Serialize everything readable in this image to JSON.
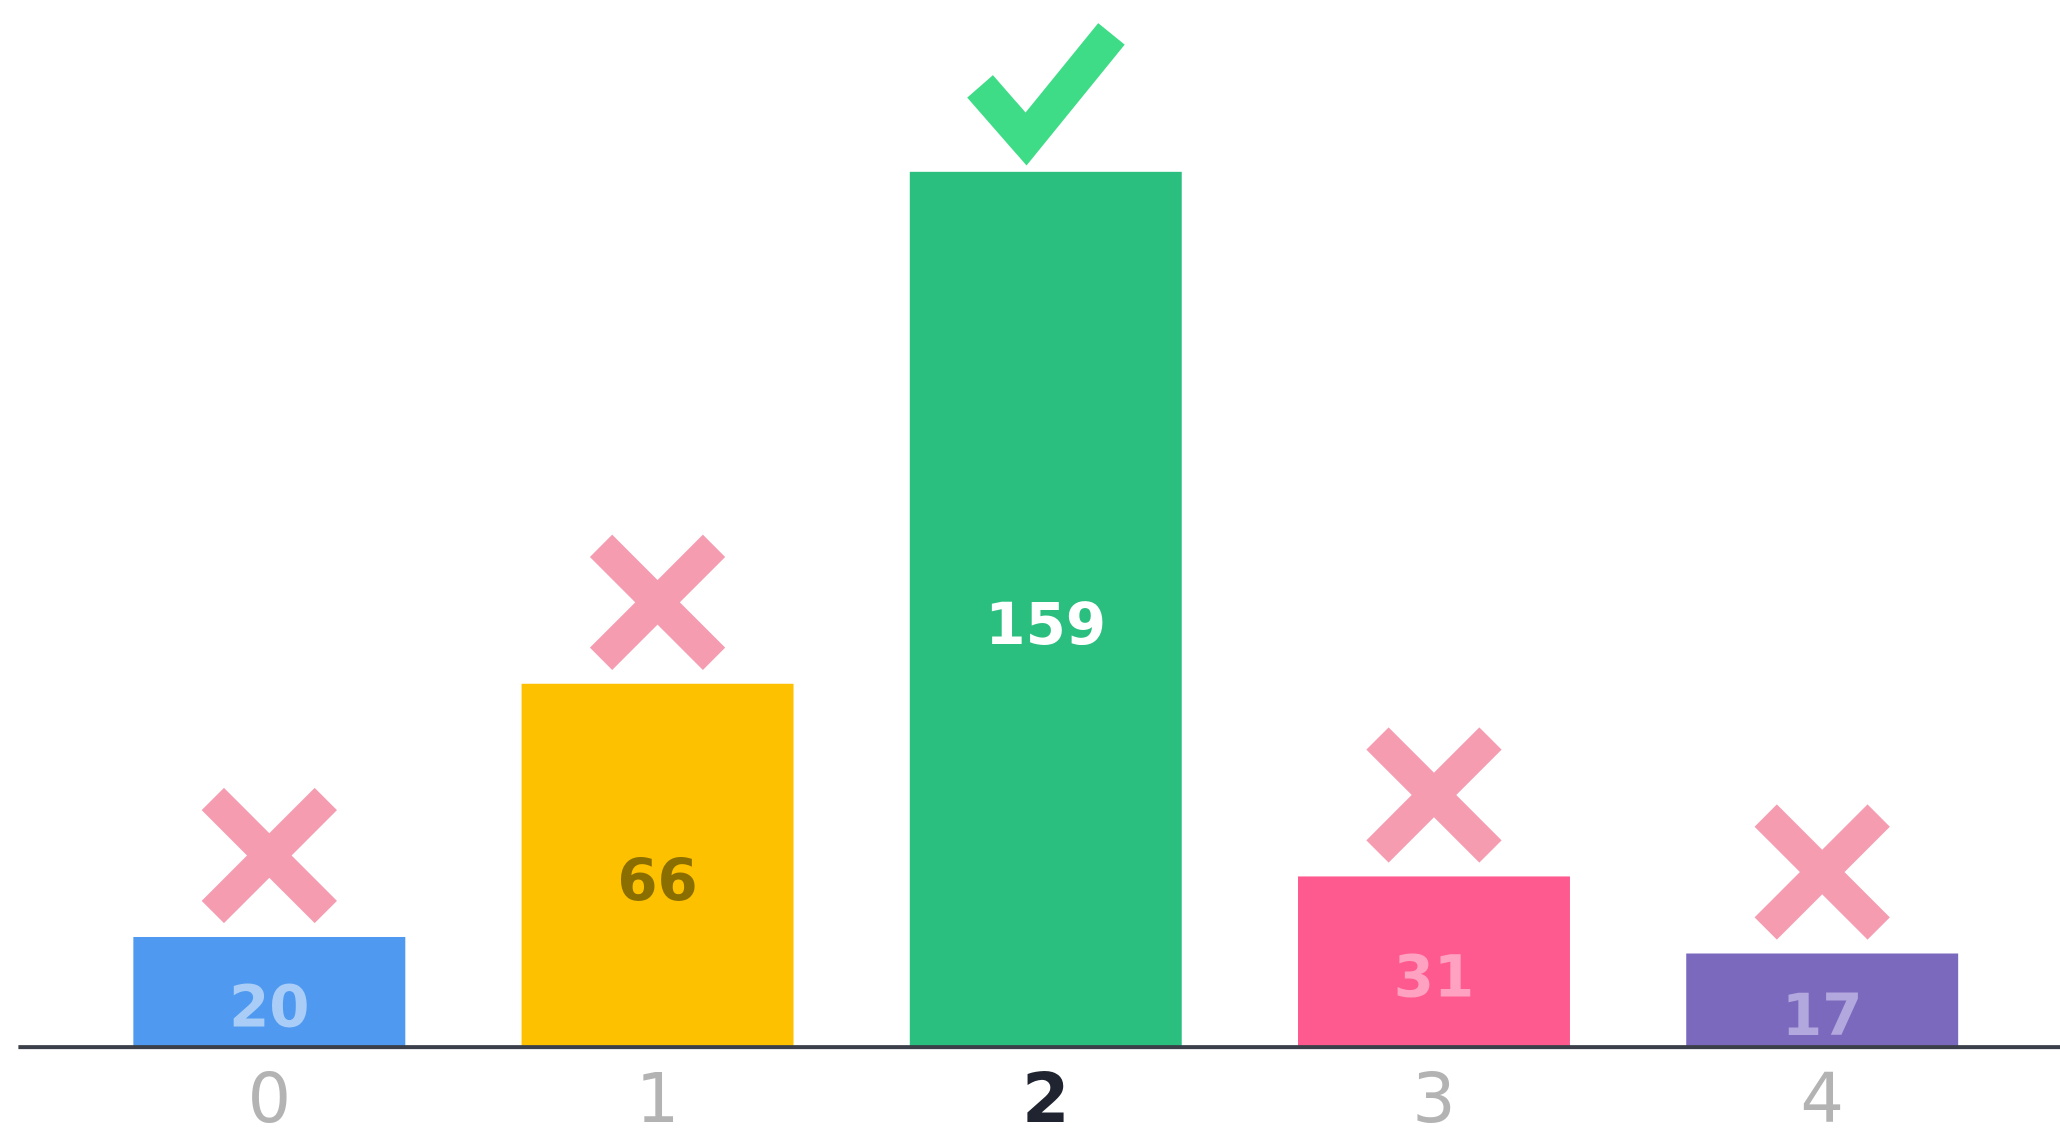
{
  "chart_data": {
    "type": "bar",
    "categories": [
      "0",
      "1",
      "2",
      "3",
      "4"
    ],
    "values": [
      20,
      66,
      159,
      31,
      17
    ],
    "colors": [
      "#4f9af0",
      "#fdc100",
      "#2bbf7f",
      "#ff5a8f",
      "#7b69be"
    ],
    "value_label_colors": [
      "#a9cdf6",
      "#8b6e00",
      "#ffffff",
      "#ffa2c1",
      "#b3a8de"
    ],
    "correct": 2
  }
}
